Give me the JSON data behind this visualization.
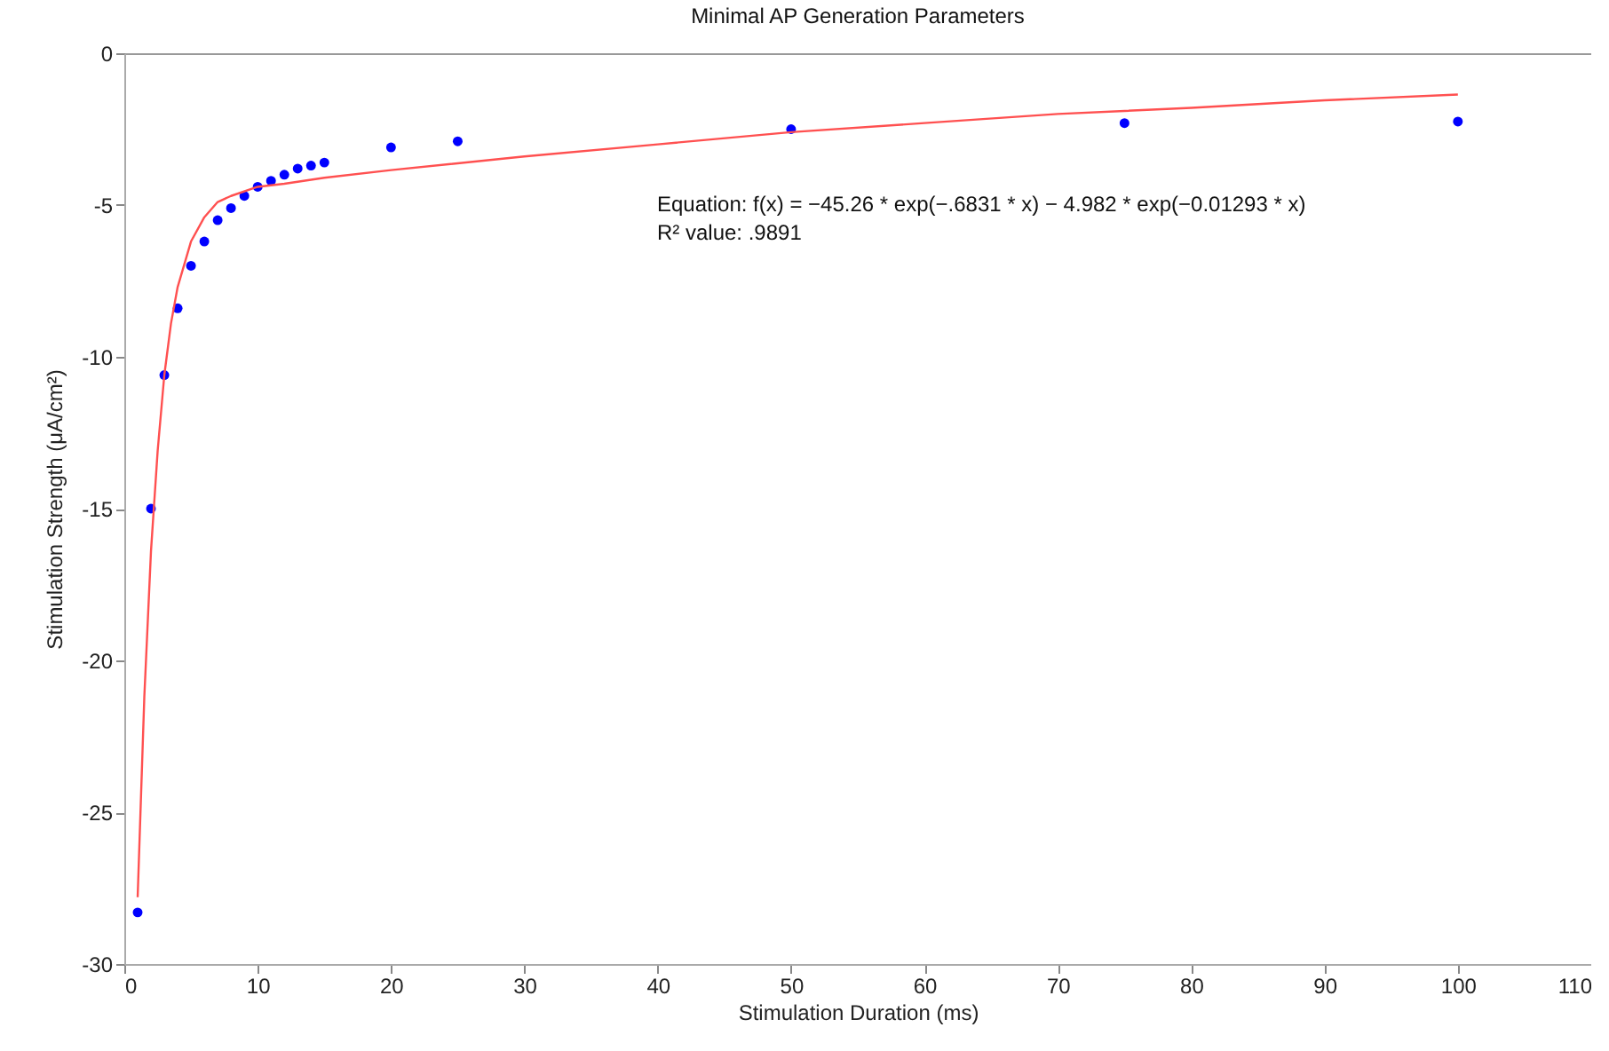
{
  "chart_data": {
    "type": "scatter",
    "title": "Minimal AP Generation Parameters",
    "xlabel": "Stimulation Duration (ms)",
    "ylabel": "Stimulation Strength (μA/cm²)",
    "xlim": [
      0,
      110
    ],
    "xticks": [
      0,
      10,
      20,
      30,
      40,
      50,
      60,
      70,
      80,
      90,
      100,
      110
    ],
    "ylim": [
      -30,
      0
    ],
    "yticks": [
      -30,
      -25,
      -20,
      -15,
      -10,
      -5,
      0
    ],
    "grid": false,
    "marker": "circle",
    "series": [
      {
        "color": "#0000ff",
        "x": [
          1,
          2,
          3,
          4,
          5,
          6,
          7,
          8,
          9,
          10,
          11,
          12,
          13,
          14,
          15,
          20,
          25,
          50,
          75,
          100
        ],
        "values": [
          -28.3,
          -15,
          -10.6,
          -8.4,
          -7.0,
          -6.2,
          -5.5,
          -5.1,
          -4.7,
          -4.4,
          -4.2,
          -4.0,
          -3.8,
          -3.7,
          -3.6,
          -3.1,
          -2.9,
          -2.5,
          -2.3,
          -2.25
        ]
      },
      {
        "type": "line",
        "color": "#ff5050",
        "marker": "none",
        "x": [
          1,
          1.5,
          2,
          2.5,
          3,
          3.5,
          4,
          5,
          6,
          7,
          8,
          10,
          12,
          15,
          20,
          30,
          40,
          50,
          60,
          70,
          80,
          90,
          100
        ],
        "values": [
          -27.8,
          -21.2,
          -16.4,
          -13.1,
          -10.6,
          -8.9,
          -7.7,
          -6.2,
          -5.4,
          -4.9,
          -4.7,
          -4.4,
          -4.3,
          -4.1,
          -3.85,
          -3.4,
          -3.0,
          -2.6,
          -2.3,
          -2.0,
          -1.8,
          -1.55,
          -1.36
        ]
      }
    ],
    "annotations": [
      "Equation: f(x) = −45.26 * exp(−.6831 * x) − 4.982 * exp(−0.01293 * x)",
      "R² value: .9891"
    ]
  }
}
